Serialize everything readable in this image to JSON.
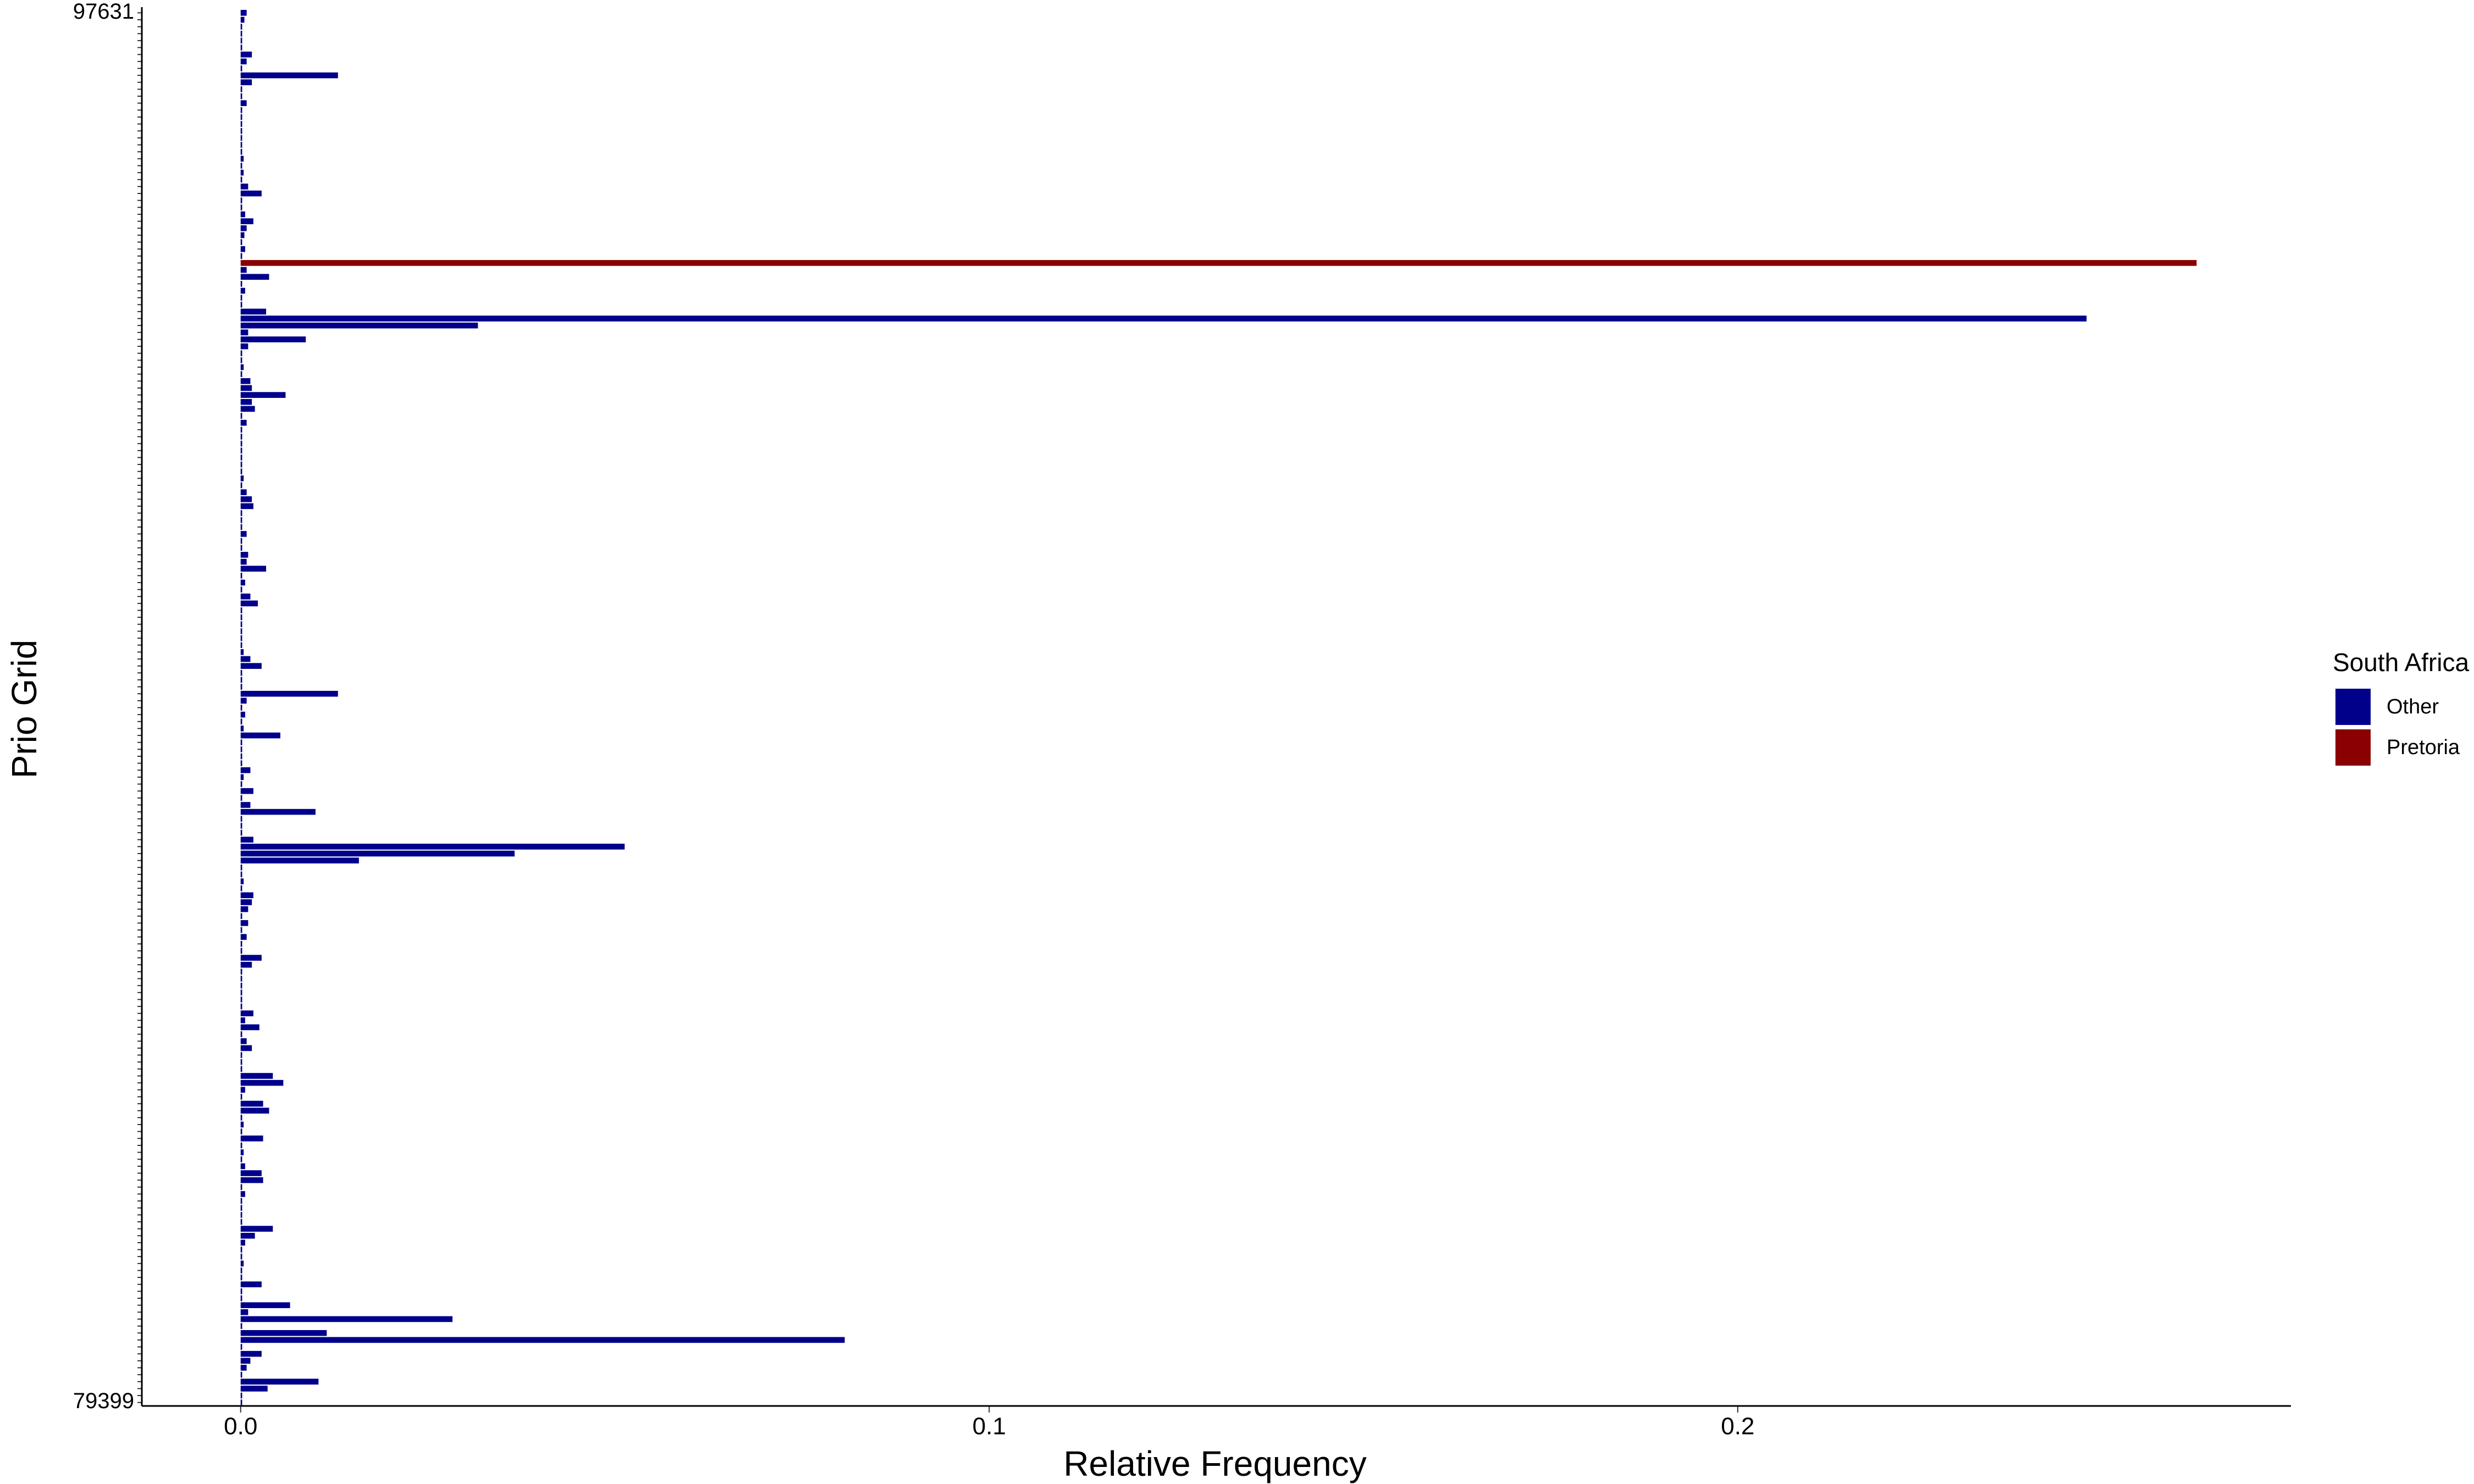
{
  "chart_data": {
    "type": "barh",
    "xlabel": "Relative Frequency",
    "ylabel": "Prio Grid",
    "legend_title": "South Africa",
    "legend_position": "right",
    "xlim": [
      -0.0132,
      0.2739
    ],
    "xticks": [
      {
        "value": 0,
        "label": "0.0"
      },
      {
        "value": 0.1,
        "label": "0.1"
      },
      {
        "value": 0.2,
        "label": "0.2"
      }
    ],
    "categories": [
      "97631",
      null,
      null,
      null,
      null,
      null,
      null,
      null,
      null,
      null,
      null,
      null,
      null,
      null,
      null,
      null,
      null,
      null,
      null,
      null,
      null,
      null,
      null,
      null,
      null,
      null,
      null,
      null,
      null,
      null,
      null,
      null,
      null,
      null,
      null,
      null,
      null,
      null,
      null,
      null,
      null,
      null,
      null,
      null,
      null,
      null,
      null,
      null,
      null,
      null,
      null,
      null,
      null,
      null,
      null,
      null,
      null,
      null,
      null,
      null,
      null,
      null,
      null,
      null,
      null,
      null,
      null,
      null,
      null,
      null,
      null,
      null,
      null,
      null,
      null,
      null,
      null,
      null,
      null,
      null,
      null,
      null,
      null,
      null,
      null,
      null,
      null,
      null,
      null,
      null,
      null,
      null,
      null,
      null,
      null,
      null,
      null,
      null,
      null,
      null,
      null,
      null,
      null,
      null,
      null,
      null,
      null,
      null,
      null,
      null,
      null,
      null,
      null,
      null,
      null,
      null,
      null,
      null,
      null,
      null,
      null,
      null,
      null,
      null,
      null,
      null,
      null,
      null,
      null,
      null,
      null,
      null,
      null,
      null,
      null,
      null,
      null,
      null,
      null,
      null,
      null,
      null,
      null,
      null,
      null,
      null,
      null,
      null,
      null,
      null,
      null,
      null,
      null,
      null,
      null,
      null,
      null,
      null,
      null,
      null,
      null,
      null,
      null,
      null,
      null,
      null,
      null,
      null,
      null,
      null,
      null,
      null,
      null,
      null,
      null,
      null,
      null,
      null,
      null,
      null,
      null,
      null,
      null,
      null,
      null,
      null,
      null,
      null,
      null,
      null,
      null,
      null,
      null,
      null,
      null,
      null,
      null,
      null,
      null,
      null,
      "79399"
    ],
    "series": [
      {
        "name": "Other",
        "color": "#00008B",
        "values": [
          0.0008,
          0.0005,
          0.0002,
          0.0002,
          0.0002,
          0.0002,
          0.0015,
          0.0008,
          0.0002,
          0.013,
          0.0015,
          0.0002,
          0.0002,
          0.0008,
          0.0002,
          0.0002,
          0.0002,
          0.0002,
          0.0002,
          0.0002,
          0.0002,
          0.0004,
          0.0002,
          0.0004,
          0.0002,
          0.001,
          0.0028,
          0.0002,
          0.0002,
          0.0006,
          0.0017,
          0.0008,
          0.0005,
          0.0002,
          0.0006,
          0.0002,
          null,
          0.0008,
          0.0038,
          0.0002,
          0.0006,
          0.0002,
          0.0002,
          0.0034,
          0.2466,
          0.0317,
          0.001,
          0.0087,
          0.001,
          0.0002,
          0.0002,
          0.0004,
          0.0002,
          0.0013,
          0.0015,
          0.006,
          0.0015,
          0.0019,
          0.0002,
          0.0008,
          0.0002,
          0.0002,
          0.0002,
          0.0002,
          0.0002,
          0.0002,
          0.0002,
          0.0004,
          0.0002,
          0.0008,
          0.0015,
          0.0017,
          0.0002,
          0.0002,
          0.0002,
          0.0008,
          0.0002,
          0.0002,
          0.001,
          0.0008,
          0.0034,
          0.0002,
          0.0006,
          0.0002,
          0.0013,
          0.0023,
          0.0002,
          0.0002,
          0.0002,
          0.0002,
          0.0002,
          0.0002,
          0.0004,
          0.0013,
          0.0028,
          0.0002,
          0.0002,
          0.0002,
          0.013,
          0.0008,
          0.0002,
          0.0006,
          0.0002,
          0.0004,
          0.0053,
          0.0002,
          0.0002,
          0.0002,
          0.0002,
          0.0013,
          0.0004,
          0.0002,
          0.0017,
          0.0002,
          0.0013,
          0.01,
          0.0002,
          0.0002,
          0.0002,
          0.0017,
          0.0513,
          0.0366,
          0.0158,
          0.0002,
          0.0002,
          0.0004,
          0.0002,
          0.0017,
          0.0015,
          0.001,
          0.0002,
          0.001,
          0.0002,
          0.0008,
          0.0002,
          0.0002,
          0.0028,
          0.0015,
          0.0002,
          0.0002,
          0.0002,
          0.0002,
          0.0002,
          0.0002,
          0.0017,
          0.0006,
          0.0025,
          0.0002,
          0.0008,
          0.0015,
          0.0002,
          0.0002,
          0.0002,
          0.0043,
          0.0057,
          0.0006,
          0.0002,
          0.003,
          0.0038,
          0.0002,
          0.0004,
          0.0002,
          0.003,
          0.0002,
          0.0004,
          0.0002,
          0.0006,
          0.0028,
          0.003,
          0.0002,
          0.0006,
          0.0002,
          0.0002,
          0.0002,
          0.0002,
          0.0043,
          0.0019,
          0.0006,
          0.0002,
          0.0002,
          0.0004,
          0.0002,
          0.0002,
          0.0028,
          0.0002,
          0.0002,
          0.0066,
          0.001,
          0.0283,
          0.0002,
          0.0115,
          0.0807,
          0.0002,
          0.0028,
          0.0013,
          0.0008,
          0.0002,
          0.0104,
          0.0036,
          0.0002,
          0.0002
        ]
      },
      {
        "name": "Pretoria",
        "color": "#8B0000",
        "values": [
          null,
          null,
          null,
          null,
          null,
          null,
          null,
          null,
          null,
          null,
          null,
          null,
          null,
          null,
          null,
          null,
          null,
          null,
          null,
          null,
          null,
          null,
          null,
          null,
          null,
          null,
          null,
          null,
          null,
          null,
          null,
          null,
          null,
          null,
          null,
          null,
          0.2613,
          null,
          null,
          null,
          null,
          null,
          null,
          null,
          null,
          null,
          null,
          null,
          null,
          null,
          null,
          null,
          null,
          null,
          null,
          null,
          null,
          null,
          null,
          null,
          null,
          null,
          null,
          null,
          null,
          null,
          null,
          null,
          null,
          null,
          null,
          null,
          null,
          null,
          null,
          null,
          null,
          null,
          null,
          null,
          null,
          null,
          null,
          null,
          null,
          null,
          null,
          null,
          null,
          null,
          null,
          null,
          null,
          null,
          null,
          null,
          null,
          null,
          null,
          null,
          null,
          null,
          null,
          null,
          null,
          null,
          null,
          null,
          null,
          null,
          null,
          null,
          null,
          null,
          null,
          null,
          null,
          null,
          null,
          null,
          null,
          null,
          null,
          null,
          null,
          null,
          null,
          null,
          null,
          null,
          null,
          null,
          null,
          null,
          null,
          null,
          null,
          null,
          null,
          null,
          null,
          null,
          null,
          null,
          null,
          null,
          null,
          null,
          null,
          null,
          null,
          null,
          null,
          null,
          null,
          null,
          null,
          null,
          null,
          null,
          null,
          null,
          null,
          null,
          null,
          null,
          null,
          null,
          null,
          null,
          null,
          null,
          null,
          null,
          null,
          null,
          null,
          null,
          null,
          null,
          null,
          null,
          null,
          null,
          null,
          null,
          null,
          null,
          null,
          null,
          null,
          null,
          null,
          null,
          null,
          null,
          null,
          null,
          null,
          null,
          null
        ]
      }
    ]
  }
}
